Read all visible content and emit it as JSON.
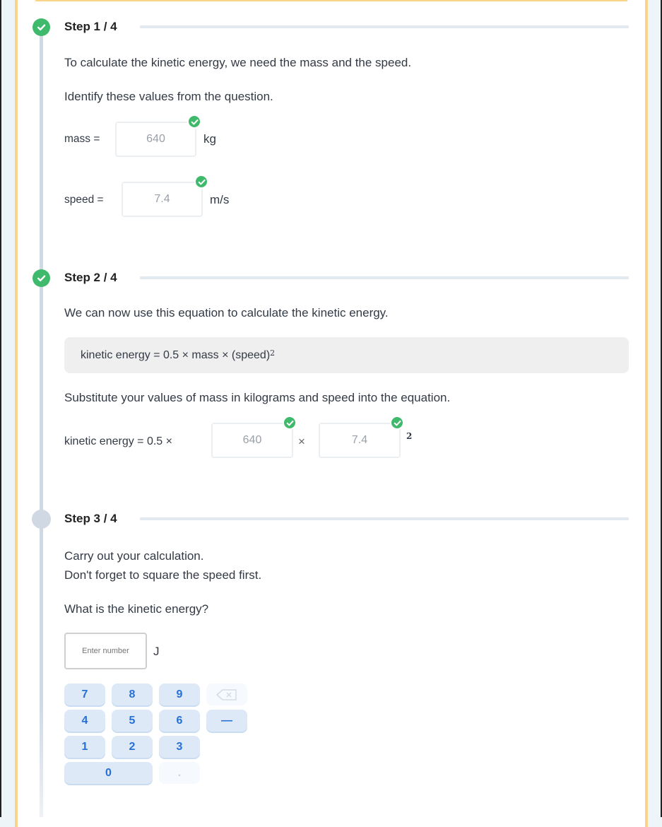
{
  "steps": [
    {
      "title": "Step 1 / 4",
      "status": "complete",
      "lines": [
        "To calculate the kinetic energy, we need the mass and the speed.",
        "Identify these values from the question."
      ],
      "fields": [
        {
          "label": "mass =",
          "value": "640",
          "unit": "kg",
          "correct": true
        },
        {
          "label": "speed =",
          "value": "7.4",
          "unit": "m/s",
          "correct": true
        }
      ]
    },
    {
      "title": "Step 2 / 4",
      "status": "complete",
      "intro": "We can now use this equation to calculate the kinetic energy.",
      "formula": {
        "text": "kinetic energy = 0.5 × mass × (speed)",
        "exponent": "2"
      },
      "instruction": "Substitute your values of mass in kilograms and speed into the equation.",
      "equation": {
        "prefix": "kinetic energy = 0.5 ×",
        "mass_value": "640",
        "times": "×",
        "speed_value": "7.4",
        "exponent": "2"
      }
    },
    {
      "title": "Step 3 / 4",
      "status": "current",
      "lines": [
        "Carry out your calculation.",
        "Don't forget to square the speed first."
      ],
      "question": "What is the kinetic energy?",
      "answer": {
        "placeholder": "Enter number",
        "value": "",
        "unit": "J"
      }
    }
  ],
  "keypad": {
    "keys": [
      "7",
      "8",
      "9",
      "4",
      "5",
      "6",
      "1",
      "2",
      "3",
      "0",
      "."
    ],
    "minus": "—",
    "backspace_icon": "backspace-icon"
  },
  "colors": {
    "success": "#3fb96b",
    "accent_border": "#fbd48a",
    "key_bg": "#dde9f7",
    "key_text": "#2670d6"
  }
}
